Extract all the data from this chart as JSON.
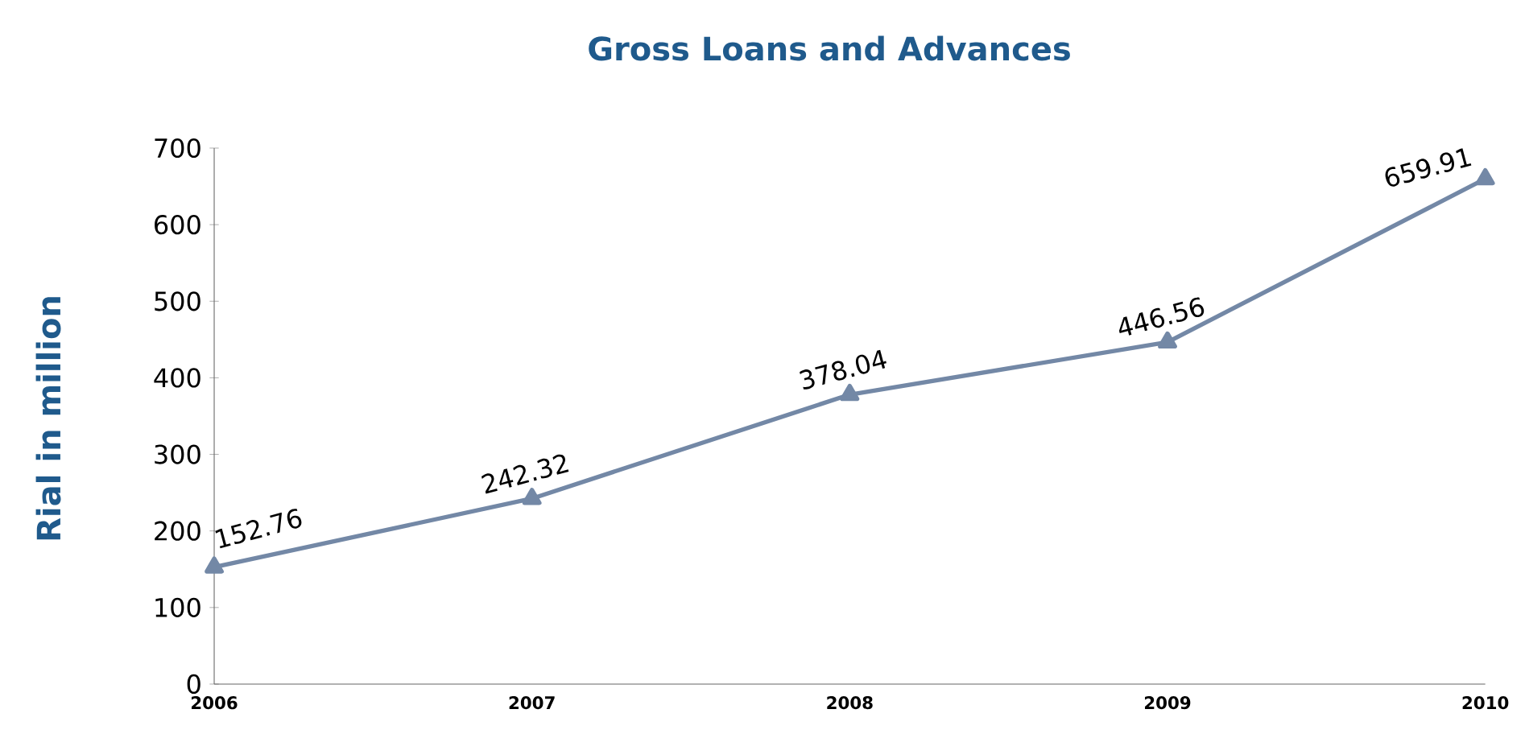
{
  "chart_data": {
    "type": "line",
    "title": "Gross Loans and Advances",
    "ylabel": "Rial in million",
    "x": [
      2006,
      2007,
      2008,
      2009,
      2010
    ],
    "series": [
      {
        "color": "#7388a6",
        "values": [
          152.76,
          242.32,
          378.04,
          446.56,
          659.91
        ]
      }
    ],
    "xlim": [
      2006,
      2010
    ],
    "xticks": [
      2006,
      2007,
      2008,
      2009,
      2010
    ],
    "ylim": [
      0,
      700
    ],
    "yticks": [
      0,
      100,
      200,
      300,
      400,
      500,
      600,
      700
    ],
    "data_labels": true,
    "marker": "triangle",
    "line_style": "solid",
    "grid": false
  }
}
